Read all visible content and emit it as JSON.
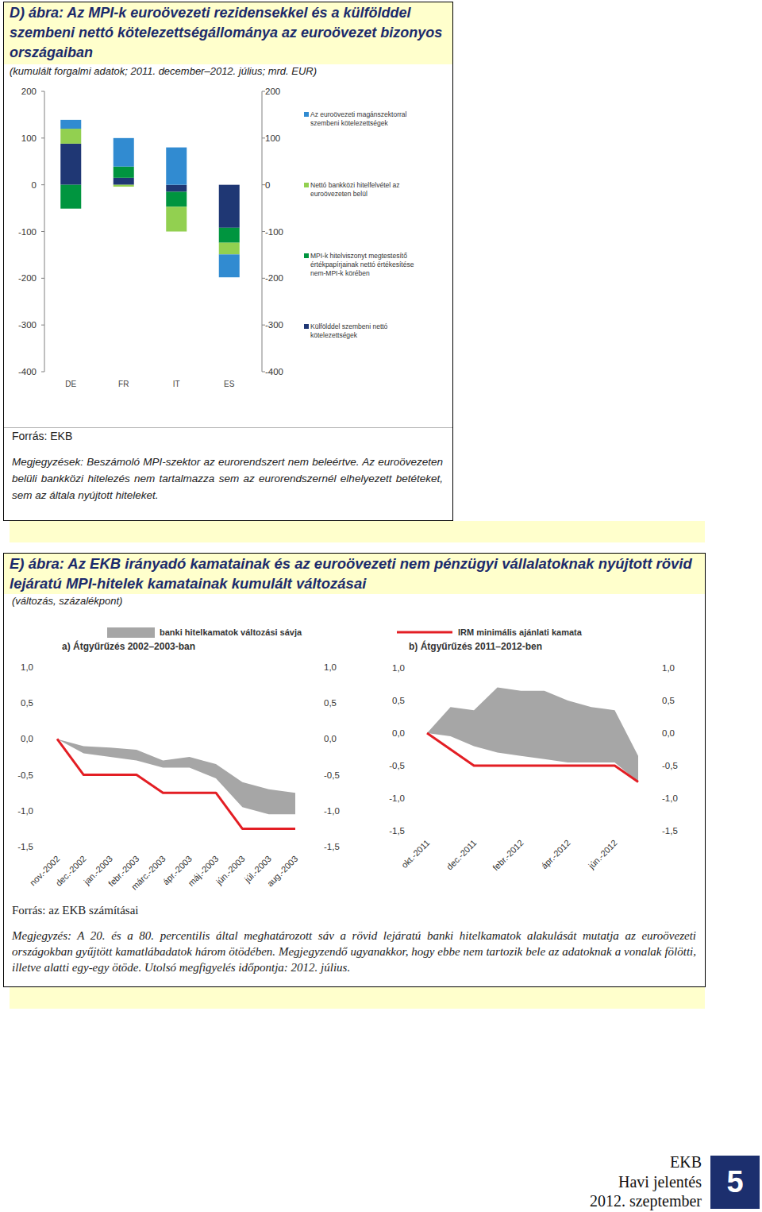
{
  "page": {
    "figures": [
      {
        "title": "D) ábra: Az MPI-k euroövezeti rezidensekkel és a külfölddel szembeni nettó kötelezettségállománya az euroövezet bizonyos országaiban",
        "subtitle": "(kumulált forgalmi adatok; 2011. december–2012. július; mrd. EUR)",
        "source": "Forrás: EKB",
        "note": "Megjegyzések: Beszámoló MPI-szektor az eurorendszert nem beleértve. Az euroövezeten belüli bankközi hitelezés nem tartalmazza sem az eurorendszernél elhelyezett betéteket, sem az általa nyújtott hiteleket."
      },
      {
        "title": "E) ábra: Az EKB irányadó kamatainak és az euroövezeti nem pénzügyi vállalatoknak nyújtott rövid lejáratú MPI-hitelek kamatainak kumulált változásai",
        "subtitle": "(változás, százalékpont)",
        "source": "Forrás: az EKB számításai",
        "note": "Megjegyzés: A 20. és a 80. percentilis által meghatározott sáv a rövid lejáratú banki hitelkamatok alakulását mutatja az euroövezeti országokban gyűjtött kamatlábadatok három ötödében. Megjegyzendő ugyanakkor, hogy ebbe nem tartozik bele az adatoknak a vonalak fölötti, illetve alatti egy-egy ötöde. Utolsó megfigyelés időpontja: 2012. július."
      }
    ],
    "footer": {
      "publisher": "EKB",
      "publication": "Havi jelentés",
      "issue": "2012. szeptember",
      "page_number": 5
    }
  },
  "chart_data": [
    {
      "type": "bar",
      "stacked": true,
      "legend": "right",
      "grid": false,
      "categories": [
        "DE",
        "FR",
        "IT",
        "ES"
      ],
      "ylim": [
        -400,
        200
      ],
      "yticks": [
        -400,
        -300,
        -200,
        -100,
        0,
        100,
        200
      ],
      "series": [
        {
          "name": "Az euroövezeti magánszektorral szembeni kötelezettségek",
          "color": "#318bd1",
          "values": [
            19,
            61,
            80,
            -49
          ]
        },
        {
          "name": "Nettó bankközi hitelfelvétel az euroövezeten belül",
          "color": "#92d050",
          "values": [
            32,
            -4,
            -53,
            -25
          ]
        },
        {
          "name": "MPI-k hitelviszonyt megtestesítő értékpapírjainak nettó értékesítése nem-MPI-k körében",
          "color": "#00953f",
          "values": [
            -51,
            24,
            -32,
            -32
          ]
        },
        {
          "name": "Külfölddel szembeni nettó kötelezettségek",
          "color": "#1f3774",
          "values": [
            88,
            15,
            -15,
            -92
          ]
        }
      ]
    },
    {
      "type": "line",
      "title": "a) Átgyűrűzés 2002–2003-ban",
      "legend": "top",
      "grid": false,
      "categories": [
        "nov.-2002",
        "dec.-2002",
        "jan.-2003",
        "febr.-2003",
        "márc.-2003",
        "ápr.-2003",
        "máj.-2003",
        "jún.-2003",
        "júl.-2003",
        "aug.-2003"
      ],
      "ylim": [
        -1.5,
        1.0
      ],
      "yticks": [
        {
          "value": -1.5,
          "label": "-1,5"
        },
        {
          "value": -1.0,
          "label": "-1,0"
        },
        {
          "value": -0.5,
          "label": "-0,5"
        },
        {
          "value": 0,
          "label": "0,0"
        },
        {
          "value": 0.5,
          "label": "0,5"
        },
        {
          "value": 1.0,
          "label": "1,0"
        }
      ],
      "series": [
        {
          "name": "banki hitelkamatok változási sávja",
          "type": "band",
          "color": "#a6a6a6",
          "values": [
            0,
            -0.1,
            -0.12,
            -0.15,
            -0.3,
            -0.25,
            -0.35,
            -0.6,
            -0.7,
            -0.75
          ],
          "low": [
            0,
            -0.2,
            -0.25,
            -0.3,
            -0.4,
            -0.4,
            -0.55,
            -0.95,
            -1.05,
            -1.05
          ]
        },
        {
          "type": "line",
          "color": "#e31e24",
          "values": [
            0,
            -0.5,
            -0.5,
            -0.5,
            -0.75,
            -0.75,
            -0.75,
            -1.25,
            -1.25,
            -1.25
          ]
        }
      ]
    },
    {
      "type": "line",
      "title": "b) Átgyűrűzés 2011–2012-ben",
      "legend": "top",
      "grid": false,
      "categories": [
        "okt.-2011",
        null,
        "dec.-2011",
        null,
        "febr.-2012",
        null,
        "ápr.-2012",
        null,
        "jún.-2012",
        null
      ],
      "ylim": [
        -1.5,
        1.0
      ],
      "yticks": [
        {
          "value": -1.5,
          "label": "-1,5"
        },
        {
          "value": -1.0,
          "label": "-1,0"
        },
        {
          "value": -0.5,
          "label": "-0,5"
        },
        {
          "value": 0,
          "label": "0,0"
        },
        {
          "value": 0.5,
          "label": "0,5"
        },
        {
          "value": 1.0,
          "label": "1,0"
        }
      ],
      "series": [
        {
          "type": "band",
          "color": "#a6a6a6",
          "values": [
            0,
            0.4,
            0.35,
            0.7,
            0.65,
            0.65,
            0.5,
            0.4,
            0.35,
            -0.35
          ],
          "low": [
            0,
            -0.05,
            -0.2,
            -0.3,
            -0.35,
            -0.4,
            -0.45,
            -0.45,
            -0.45,
            -0.75
          ]
        },
        {
          "name": "IRM minimális ajánlati kamata",
          "type": "line",
          "color": "#e31e24",
          "values": [
            0,
            -0.25,
            -0.5,
            -0.5,
            -0.5,
            -0.5,
            -0.5,
            -0.5,
            -0.5,
            -0.75
          ]
        }
      ]
    }
  ]
}
